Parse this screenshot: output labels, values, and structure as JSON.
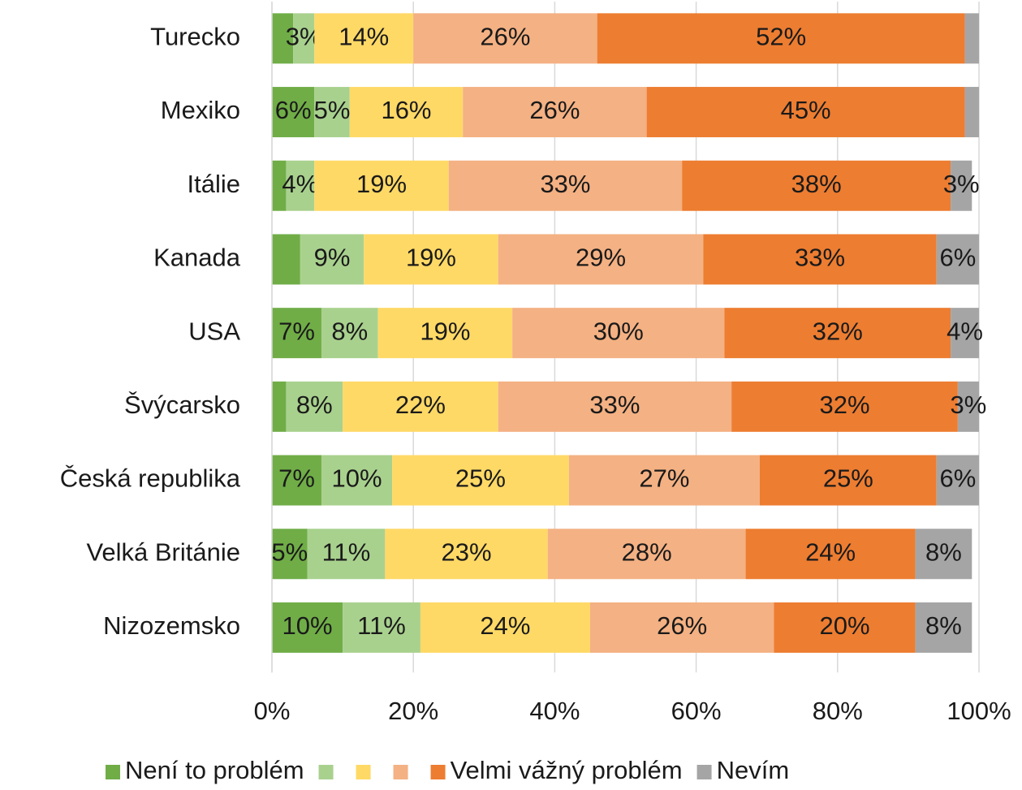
{
  "chart_data": {
    "type": "stacked_barh",
    "categories": [
      "Turecko",
      "Mexiko",
      "Itálie",
      "Kanada",
      "USA",
      "Švýcarsko",
      "Česká republika",
      "Velká Británie",
      "Nizozemsko"
    ],
    "series": [
      {
        "name": "Není to problém",
        "color": "#70ad47",
        "values": [
          3,
          6,
          2,
          4,
          7,
          2,
          7,
          5,
          10
        ],
        "value_labels": [
          null,
          "6%",
          null,
          null,
          "7%",
          null,
          "7%",
          "5%",
          "10%"
        ]
      },
      {
        "name": null,
        "color": "#a9d18e",
        "values": [
          3,
          5,
          4,
          9,
          8,
          8,
          10,
          11,
          11
        ],
        "value_labels": [
          "3%",
          "5%",
          "4%",
          "9%",
          "8%",
          "8%",
          "10%",
          "11%",
          "11%"
        ]
      },
      {
        "name": null,
        "color": "#ffd966",
        "values": [
          14,
          16,
          19,
          19,
          19,
          22,
          25,
          23,
          24
        ],
        "value_labels": [
          "14%",
          "16%",
          "19%",
          "19%",
          "19%",
          "22%",
          "25%",
          "23%",
          "24%"
        ]
      },
      {
        "name": null,
        "color": "#f4b183",
        "values": [
          26,
          26,
          33,
          29,
          30,
          33,
          27,
          28,
          26
        ],
        "value_labels": [
          "26%",
          "26%",
          "33%",
          "29%",
          "30%",
          "33%",
          "27%",
          "28%",
          "26%"
        ]
      },
      {
        "name": "Velmi vážný problém",
        "color": "#ed7d31",
        "values": [
          52,
          45,
          38,
          33,
          32,
          32,
          25,
          24,
          20
        ],
        "value_labels": [
          "52%",
          "45%",
          "38%",
          "33%",
          "32%",
          "32%",
          "25%",
          "24%",
          "20%"
        ]
      },
      {
        "name": "Nevím",
        "color": "#a5a5a5",
        "values": [
          2,
          2,
          3,
          6,
          4,
          3,
          6,
          8,
          8
        ],
        "value_labels": [
          null,
          null,
          "3%",
          "6%",
          "4%",
          "3%",
          "6%",
          "8%",
          "8%"
        ]
      }
    ],
    "xlim": [
      0,
      100
    ],
    "xticks": [
      {
        "value": 0,
        "label": "0%"
      },
      {
        "value": 20,
        "label": "20%"
      },
      {
        "value": 40,
        "label": "40%"
      },
      {
        "value": 60,
        "label": "60%"
      },
      {
        "value": 80,
        "label": "80%"
      },
      {
        "value": 100,
        "label": "100%"
      }
    ],
    "grid": true,
    "legend": "bottom"
  }
}
